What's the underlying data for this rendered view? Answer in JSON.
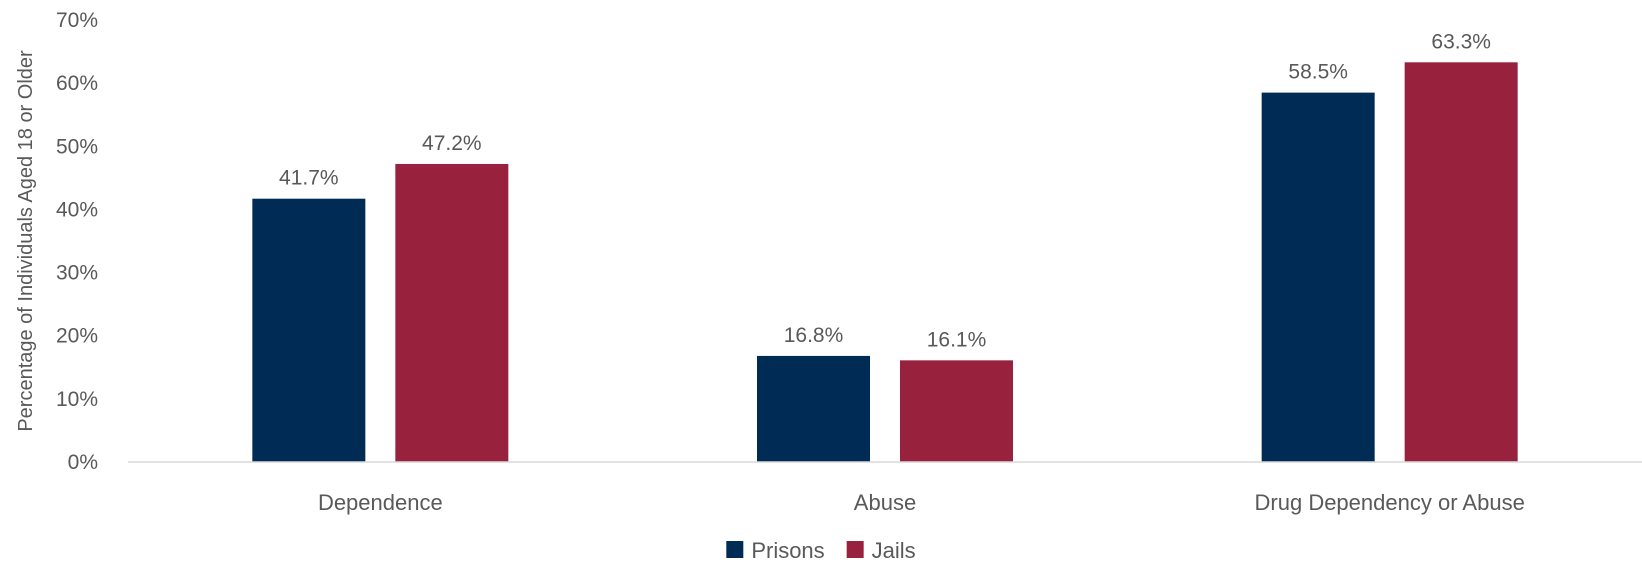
{
  "chart_data": {
    "type": "bar",
    "title": "",
    "xlabel": "",
    "ylabel": "Percentage of Individuals Aged 18 or Older",
    "categories": [
      "Dependence",
      "Abuse",
      "Drug Dependency or Abuse"
    ],
    "series": [
      {
        "name": "Prisons",
        "color": "#002b55",
        "values": [
          41.7,
          16.8,
          58.5
        ],
        "labels": [
          "41.7%",
          "16.8%",
          "58.5%"
        ]
      },
      {
        "name": "Jails",
        "color": "#98223e",
        "values": [
          47.2,
          16.1,
          63.3
        ],
        "labels": [
          "47.2%",
          "16.1%",
          "63.3%"
        ]
      }
    ],
    "ylim": [
      0,
      70
    ],
    "yticks": [
      0,
      10,
      20,
      30,
      40,
      50,
      60,
      70
    ],
    "ytick_labels": [
      "0%",
      "10%",
      "20%",
      "30%",
      "40%",
      "50%",
      "60%",
      "70%"
    ],
    "grid": false,
    "legend_position": "bottom-center"
  }
}
